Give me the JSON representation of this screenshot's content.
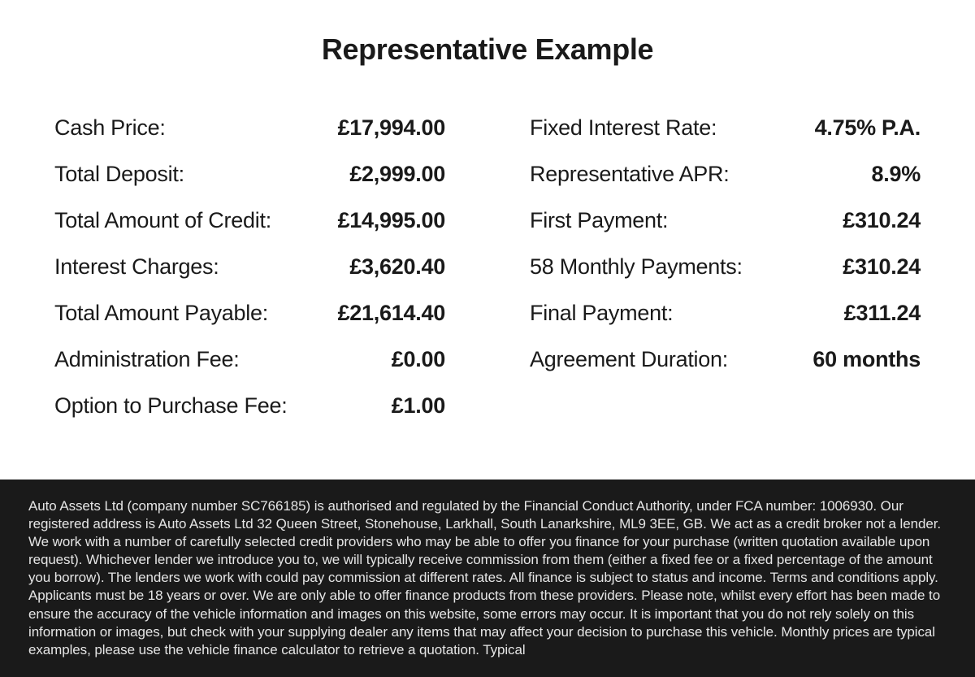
{
  "title": "Representative Example",
  "left_column": [
    {
      "label": "Cash Price:",
      "value": "£17,994.00"
    },
    {
      "label": "Total Deposit:",
      "value": "£2,999.00"
    },
    {
      "label": "Total Amount of Credit:",
      "value": "£14,995.00"
    },
    {
      "label": "Interest Charges:",
      "value": "£3,620.40"
    },
    {
      "label": "Total Amount Payable:",
      "value": "£21,614.40"
    },
    {
      "label": "Administration Fee:",
      "value": "£0.00"
    },
    {
      "label": "Option to Purchase Fee:",
      "value": "£1.00"
    }
  ],
  "right_column": [
    {
      "label": "Fixed Interest Rate:",
      "value": "4.75% P.A."
    },
    {
      "label": "Representative APR:",
      "value": "8.9%"
    },
    {
      "label": "First Payment:",
      "value": "£310.24"
    },
    {
      "label": "58 Monthly Payments:",
      "value": "£310.24"
    },
    {
      "label": "Final Payment:",
      "value": "£311.24"
    },
    {
      "label": "Agreement Duration:",
      "value": "60 months"
    }
  ],
  "footer_text": "Auto Assets Ltd (company number SC766185) is authorised and regulated by the Financial Conduct Authority, under FCA number: 1006930. Our registered address is Auto Assets Ltd 32 Queen Street, Stonehouse, Larkhall, South Lanarkshire, ML9 3EE, GB. We act as a credit broker not a lender. We work with a number of carefully selected credit providers who may be able to offer you finance for your purchase (written quotation available upon request). Whichever lender we introduce you to, we will typically receive commission from them (either a fixed fee or a fixed percentage of the amount you borrow). The lenders we work with could pay commission at different rates. All finance is subject to status and income. Terms and conditions apply. Applicants must be 18 years or over. We are only able to offer finance products from these providers. Please note, whilst every effort has been made to ensure the accuracy of the vehicle information and images on this website, some errors may occur. It is important that you do not rely solely on this information or images, but check with your supplying dealer any items that may affect your decision to purchase this vehicle. Monthly prices are typical examples, please use the vehicle finance calculator to retrieve a quotation. Typical"
}
